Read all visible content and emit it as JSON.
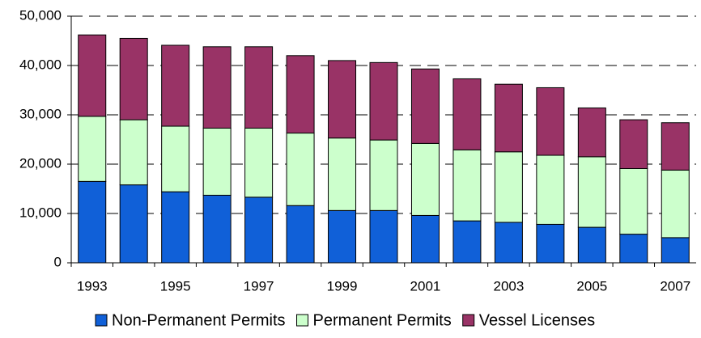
{
  "chart_data": {
    "type": "stacked_bar",
    "categories": [
      "1993",
      null,
      "1995",
      null,
      "1997",
      null,
      "1999",
      null,
      "2001",
      null,
      "2003",
      null,
      "2005",
      null,
      "2007"
    ],
    "series": [
      {
        "name": "Non-Permanent Permits",
        "color": "#1060d8",
        "values": [
          16500,
          15800,
          14400,
          13700,
          13300,
          11600,
          10600,
          10600,
          9600,
          8500,
          8200,
          7800,
          7200,
          5800,
          5100
        ]
      },
      {
        "name": "Permanent Permits",
        "color": "#ccffcc",
        "values": [
          13200,
          13200,
          13300,
          13600,
          14000,
          14700,
          14700,
          14300,
          14600,
          14400,
          14300,
          14000,
          14300,
          13300,
          13700
        ]
      },
      {
        "name": "Vessel Licenses",
        "color": "#993366",
        "values": [
          16500,
          16500,
          16400,
          16500,
          16500,
          15700,
          15700,
          15700,
          15100,
          14400,
          13700,
          13700,
          9900,
          9900,
          9600
        ]
      }
    ],
    "ylim": [
      0,
      50000
    ],
    "yticks": [
      0,
      {
        "value": 10000,
        "label": "10,000"
      },
      {
        "value": 20000,
        "label": "20,000"
      },
      {
        "value": 30000,
        "label": "30,000"
      },
      {
        "value": 40000,
        "label": "40,000"
      },
      {
        "value": 50000,
        "label": "50,000"
      }
    ],
    "grid": true,
    "legend": "bottom"
  }
}
